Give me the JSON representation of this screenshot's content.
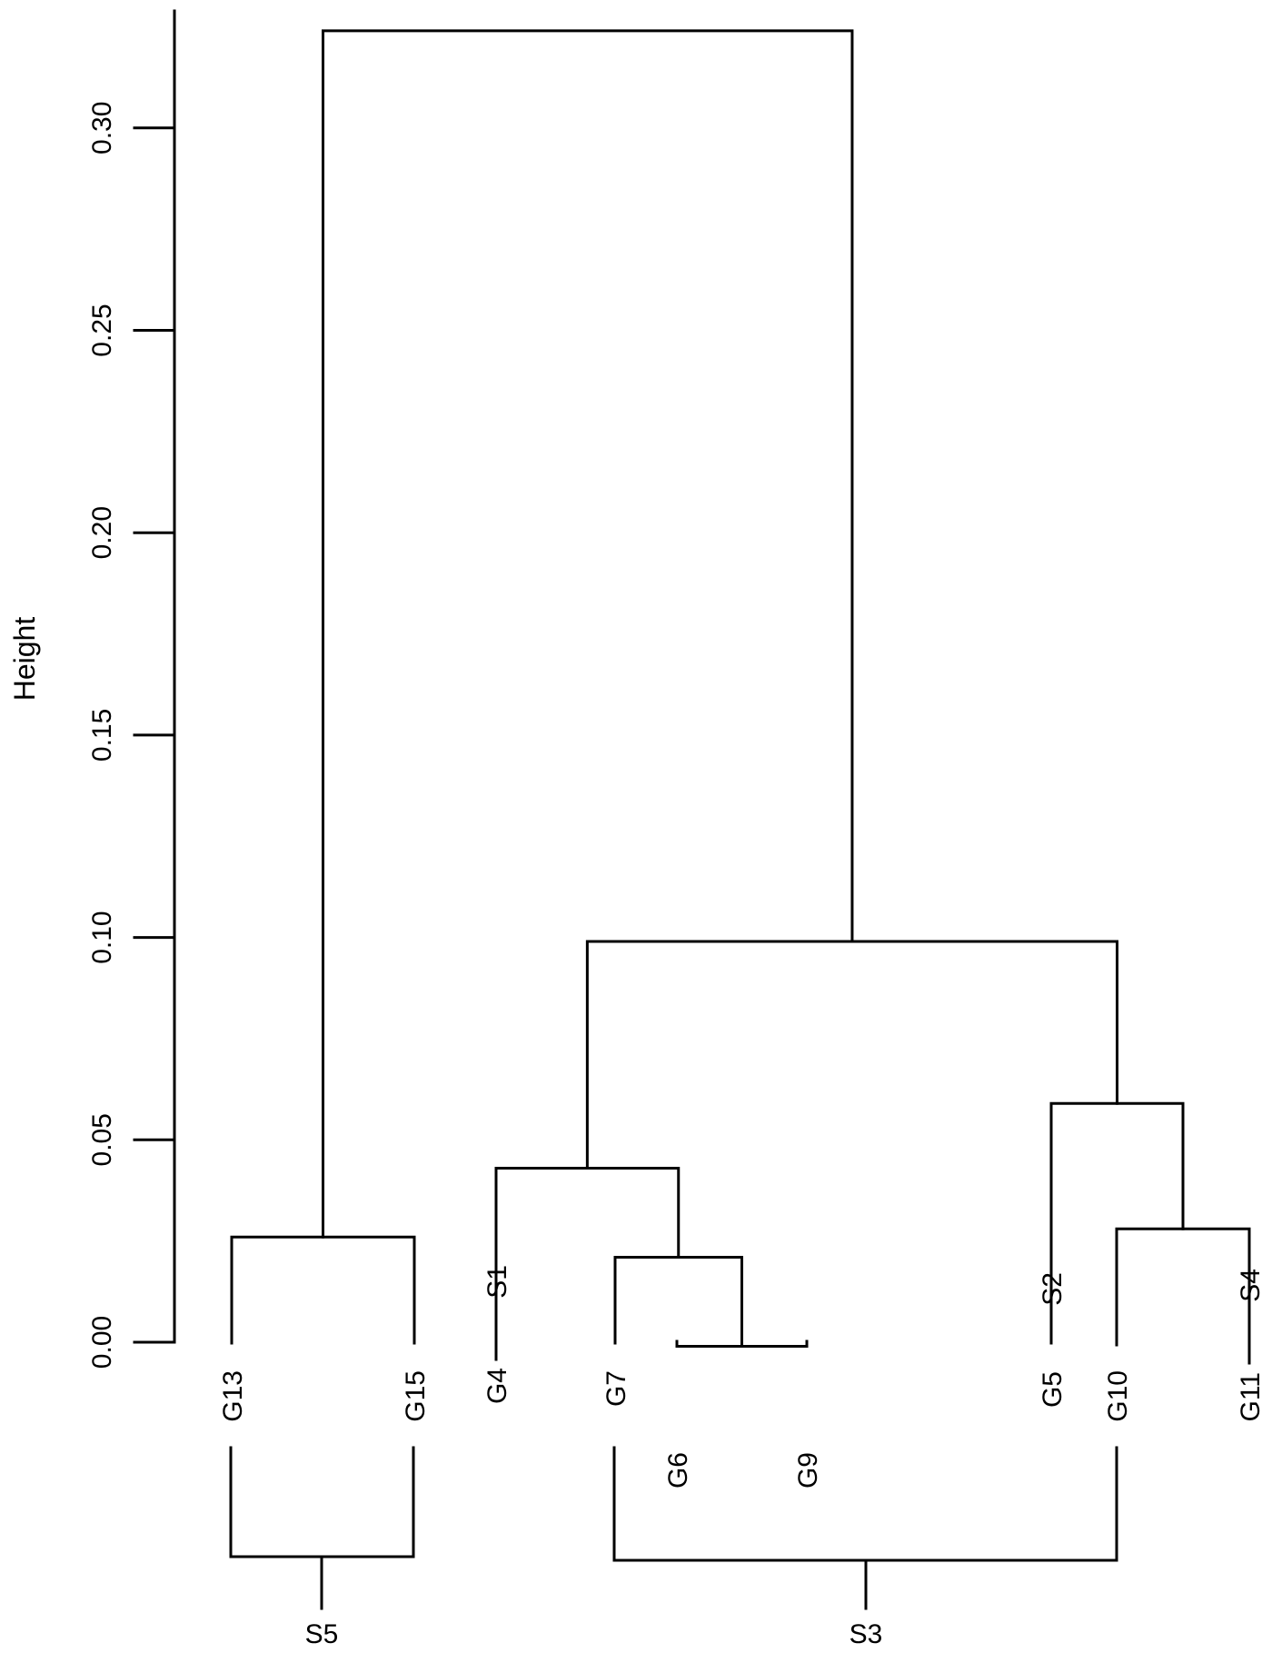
{
  "chart_data": {
    "type": "dendrogram",
    "ylabel": "Height",
    "ylim": [
      0,
      0.3
    ],
    "yticks": [
      "0.00",
      "0.05",
      "0.10",
      "0.15",
      "0.20",
      "0.25",
      "0.30"
    ],
    "leaves": [
      {
        "id": "G13",
        "label": "G13"
      },
      {
        "id": "G15",
        "label": "G15"
      },
      {
        "id": "G4",
        "label": "G4"
      },
      {
        "id": "S1",
        "label": "S1"
      },
      {
        "id": "G7",
        "label": "G7"
      },
      {
        "id": "G6",
        "label": "G6"
      },
      {
        "id": "G9",
        "label": "G9"
      },
      {
        "id": "G5",
        "label": "G5"
      },
      {
        "id": "S2",
        "label": "S2"
      },
      {
        "id": "G10",
        "label": "G10"
      },
      {
        "id": "G11",
        "label": "G11"
      },
      {
        "id": "S4",
        "label": "S4"
      }
    ],
    "merges": [
      {
        "id": "c-g13-g15",
        "left": "G13",
        "right": "G15",
        "height": 0.026
      },
      {
        "id": "c-g6-g9",
        "left": "G6",
        "right": "G9",
        "height": -0.001
      },
      {
        "id": "c-g7-g6g9",
        "left": "G7",
        "right": "c-g6-g9",
        "height": 0.021
      },
      {
        "id": "c-g4s1-g7",
        "left": "G4-S1",
        "right": "c-g7-g6g9",
        "height": 0.043
      },
      {
        "id": "c-g10-g11s4",
        "left": "G10",
        "right": "G11-S4",
        "height": 0.028
      },
      {
        "id": "c-g5s2-g10",
        "left": "G5-S2",
        "right": "c-g10-g11s4",
        "height": 0.059
      },
      {
        "id": "c-mid",
        "left": "c-g4s1-g7",
        "right": "c-g5s2-g10",
        "height": 0.099
      },
      {
        "id": "c-root",
        "left": "c-g13-g15",
        "right": "c-mid",
        "height": 0.324
      }
    ],
    "groups": [
      {
        "id": "S5",
        "label": "S5",
        "members": [
          "G13",
          "G15"
        ]
      },
      {
        "id": "S3",
        "label": "S3",
        "members": [
          "G7",
          "G10"
        ]
      }
    ]
  }
}
